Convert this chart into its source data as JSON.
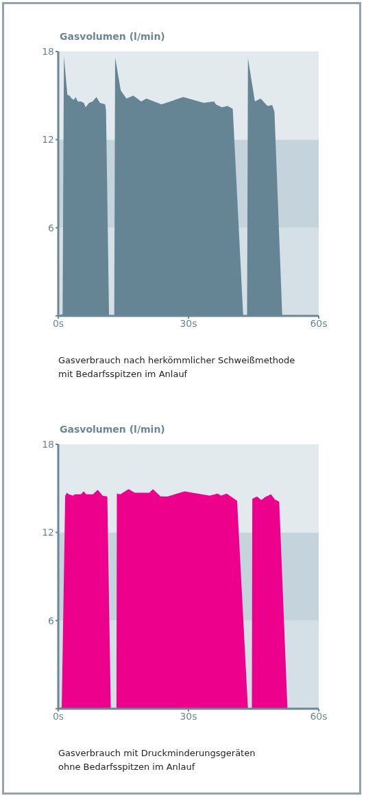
{
  "chart_data": [
    {
      "type": "area",
      "ylabel": "Gasvolumen (l/min)",
      "xlim": [
        0,
        60
      ],
      "xticks": [
        {
          "value": 0,
          "label": "0s"
        },
        {
          "value": 30,
          "label": "30s"
        },
        {
          "value": 60,
          "label": "60s"
        }
      ],
      "ylim": [
        0,
        18
      ],
      "yticks": [
        {
          "value": 0,
          "label": null
        },
        6,
        12,
        18
      ],
      "bands": [
        {
          "axis": "y",
          "from": 0,
          "to": 6,
          "color": "#d5e0e6"
        },
        {
          "axis": "y",
          "from": 6,
          "to": 12,
          "color": "#c5d3dc"
        },
        {
          "axis": "y",
          "from": 12,
          "to": 18,
          "color": "#e3eaee"
        }
      ],
      "series": [
        {
          "color": "#658594",
          "x": [
            0,
            0.8,
            1.0,
            1.3,
            2.1,
            2.6,
            3.1,
            3.6,
            4.0,
            4.5,
            5.2,
            5.9,
            6.3,
            7.1,
            7.9,
            8.8,
            9.6,
            10.8,
            11.0,
            11.7,
            12.9,
            13.1,
            14.4,
            15.7,
            17.3,
            19.1,
            20.3,
            23.8,
            28.8,
            33.5,
            35.9,
            36.3,
            37.7,
            39.0,
            40.2,
            42.6,
            43.5,
            43.7,
            45.3,
            46.6,
            48.2,
            49.3,
            49.8,
            51.6,
            60
          ],
          "values": [
            0,
            0.1,
            0.1,
            17.7,
            15.05,
            15.0,
            14.8,
            14.7,
            14.9,
            14.6,
            14.6,
            14.5,
            14.2,
            14.5,
            14.6,
            14.9,
            14.5,
            14.4,
            14.0,
            0,
            0,
            17.6,
            15.35,
            14.8,
            15.0,
            14.6,
            14.8,
            14.4,
            14.9,
            14.5,
            14.6,
            14.4,
            14.2,
            14.3,
            14.1,
            0,
            0,
            17.55,
            14.6,
            14.8,
            14.3,
            14.35,
            13.9,
            0,
            0
          ]
        }
      ],
      "annotations": [
        "Gasverbrauch nach herkömmlicher Schweißmethode\nmit Bedarfsspitzen im Anlauf"
      ]
    },
    {
      "type": "area",
      "ylabel": "Gasvolumen (l/min)",
      "xlim": [
        0,
        60
      ],
      "xticks": [
        {
          "value": 0,
          "label": "0s"
        },
        {
          "value": 30,
          "label": "30s"
        },
        {
          "value": 60,
          "label": "60s"
        }
      ],
      "ylim": [
        0,
        18
      ],
      "yticks": [
        {
          "value": 0,
          "label": null
        },
        6,
        12,
        18
      ],
      "bands": [
        {
          "axis": "y",
          "from": 0,
          "to": 6,
          "color": "#d5e0e6"
        },
        {
          "axis": "y",
          "from": 6,
          "to": 12,
          "color": "#c5d3dc"
        },
        {
          "axis": "y",
          "from": 12,
          "to": 18,
          "color": "#e3eaee"
        }
      ],
      "series": [
        {
          "color": "#ec008c",
          "x": [
            0,
            0.8,
            1.6,
            2.0,
            2.4,
            3.4,
            3.8,
            5.2,
            5.9,
            6.4,
            8.0,
            9.1,
            10.2,
            11.3,
            12.1,
            13.4,
            13.5,
            14.3,
            16.2,
            17.6,
            21.0,
            21.8,
            23.6,
            25.2,
            29.1,
            34.9,
            36.7,
            37.5,
            38.8,
            41.2,
            43.7,
            44.6,
            44.7,
            45.8,
            46.8,
            47.6,
            49.0,
            49.9,
            50.9,
            52.8,
            60
          ],
          "values": [
            0,
            0.1,
            14.5,
            14.7,
            14.6,
            14.5,
            14.6,
            14.6,
            14.8,
            14.6,
            14.6,
            14.9,
            14.5,
            14.45,
            0,
            0,
            14.65,
            14.6,
            14.95,
            14.7,
            14.7,
            14.95,
            14.45,
            14.45,
            14.8,
            14.5,
            14.65,
            14.5,
            14.65,
            14.15,
            0,
            0,
            14.3,
            14.45,
            14.2,
            14.4,
            14.6,
            14.25,
            14.1,
            0,
            0
          ]
        }
      ],
      "annotations": [
        "Gasverbrauch mit Druckminderungsgeräten\nohne Bedarfsspitzen im Anlauf"
      ]
    }
  ]
}
